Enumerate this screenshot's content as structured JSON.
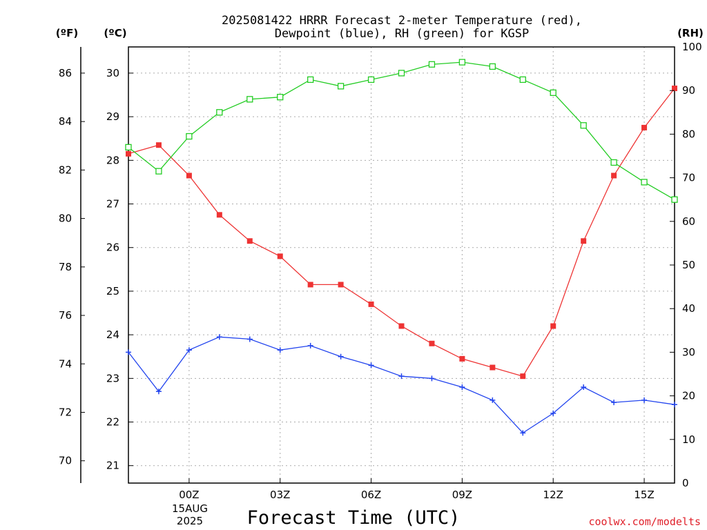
{
  "chart_data": {
    "type": "line",
    "title_lines": [
      "2025081422 HRRR Forecast 2-meter Temperature (red),",
      "Dewpoint (blue), RH (green) for KGSP"
    ],
    "xlabel": "Forecast Time (UTC)",
    "credit": "coolwx.com/modelts",
    "x_hours": [
      -2,
      -1,
      0,
      1,
      2,
      3,
      4,
      5,
      6,
      7,
      8,
      9,
      10,
      11,
      12,
      13,
      14,
      15,
      16
    ],
    "x_ticks": [
      {
        "hour": 0,
        "label": "00Z"
      },
      {
        "hour": 3,
        "label": "03Z"
      },
      {
        "hour": 6,
        "label": "06Z"
      },
      {
        "hour": 9,
        "label": "09Z"
      },
      {
        "hour": 12,
        "label": "12Z"
      },
      {
        "hour": 15,
        "label": "15Z"
      }
    ],
    "date_label_line1": "15AUG",
    "date_label_line2": "2025",
    "xlim": [
      -2,
      16
    ],
    "axes": {
      "fahrenheit": {
        "unit_label": "(ºF)",
        "ticks": [
          "70",
          "72",
          "74",
          "76",
          "78",
          "80",
          "82",
          "84",
          "86"
        ]
      },
      "celsius": {
        "unit_label": "(ºC)",
        "ylim": [
          20.6,
          30.6
        ],
        "ticks": [
          "21",
          "22",
          "23",
          "24",
          "25",
          "26",
          "27",
          "28",
          "29",
          "30"
        ]
      },
      "rh": {
        "unit_label": "(RH)",
        "ylim": [
          0,
          100
        ],
        "ticks": [
          "0",
          "10",
          "20",
          "30",
          "40",
          "50",
          "60",
          "70",
          "80",
          "90",
          "100"
        ]
      }
    },
    "grid": true,
    "series": [
      {
        "name": "Temperature",
        "axis": "celsius",
        "color": "#ee3333",
        "marker": "filled-square",
        "values": [
          28.15,
          28.35,
          27.65,
          26.75,
          26.15,
          25.8,
          25.15,
          25.15,
          24.7,
          24.2,
          23.8,
          23.45,
          23.25,
          23.05,
          24.2,
          26.15,
          27.65,
          28.75,
          29.65
        ]
      },
      {
        "name": "Dewpoint",
        "axis": "celsius",
        "color": "#2244ee",
        "marker": "plus",
        "values": [
          23.6,
          22.7,
          23.65,
          23.95,
          23.9,
          23.65,
          23.75,
          23.5,
          23.3,
          23.05,
          23.0,
          22.8,
          22.5,
          21.75,
          22.2,
          22.8,
          22.45,
          22.5,
          22.4
        ]
      },
      {
        "name": "RH",
        "axis": "rh",
        "color": "#22cc22",
        "marker": "open-square",
        "values": [
          77,
          71.5,
          79.5,
          85,
          88,
          88.5,
          92.5,
          91,
          92.5,
          94,
          96,
          96.5,
          95.5,
          92.5,
          89.5,
          82,
          73.5,
          69,
          65
        ]
      }
    ]
  }
}
